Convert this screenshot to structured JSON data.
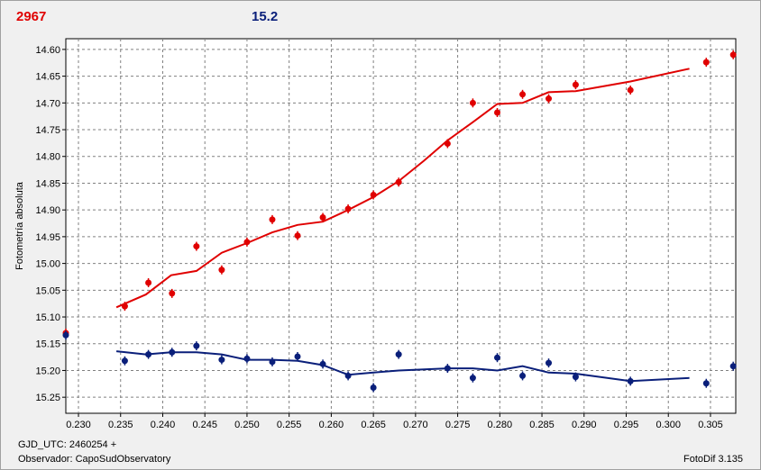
{
  "header": {
    "left_value": "2967",
    "right_value": "15.2"
  },
  "footer": {
    "gjd": "GJD_UTC: 2460254 +",
    "observer": "Observador: CapoSudObservatory",
    "software": "FotoDif 3.135"
  },
  "colors": {
    "red": "#e00000",
    "blue": "#0a1f7a",
    "grid": "#808080",
    "plot_bg": "#ffffff"
  },
  "chart_data": {
    "type": "scatter",
    "xlim": [
      0.2285,
      0.308
    ],
    "ylim": [
      15.28,
      14.58
    ],
    "y_inverted": true,
    "grid": true,
    "ylabel": "Fotometría absoluta",
    "x_ticks": [
      "0.230",
      "0.235",
      "0.240",
      "0.245",
      "0.250",
      "0.255",
      "0.260",
      "0.265",
      "0.270",
      "0.275",
      "0.280",
      "0.285",
      "0.290",
      "0.295",
      "0.300",
      "0.305"
    ],
    "y_ticks": [
      "14.60",
      "14.65",
      "14.70",
      "14.75",
      "14.80",
      "14.85",
      "14.90",
      "14.95",
      "15.00",
      "15.05",
      "15.10",
      "15.15",
      "15.20",
      "15.25"
    ],
    "series": [
      {
        "color": "#e00000",
        "points": [
          [
            0.2285,
            15.13
          ],
          [
            0.2355,
            15.08
          ],
          [
            0.2383,
            15.036
          ],
          [
            0.2411,
            15.056
          ],
          [
            0.244,
            14.968
          ],
          [
            0.247,
            15.012
          ],
          [
            0.25,
            14.96
          ],
          [
            0.253,
            14.918
          ],
          [
            0.256,
            14.948
          ],
          [
            0.259,
            14.914
          ],
          [
            0.262,
            14.898
          ],
          [
            0.265,
            14.872
          ],
          [
            0.268,
            14.848
          ],
          [
            0.2738,
            14.776
          ],
          [
            0.2768,
            14.7
          ],
          [
            0.2797,
            14.718
          ],
          [
            0.2827,
            14.684
          ],
          [
            0.2858,
            14.692
          ],
          [
            0.289,
            14.666
          ],
          [
            0.2955,
            14.676
          ],
          [
            0.3045,
            14.624
          ],
          [
            0.3077,
            14.61
          ]
        ],
        "trend": [
          [
            0.2345,
            15.082
          ],
          [
            0.238,
            15.058
          ],
          [
            0.241,
            15.022
          ],
          [
            0.244,
            15.014
          ],
          [
            0.247,
            14.98
          ],
          [
            0.25,
            14.962
          ],
          [
            0.253,
            14.942
          ],
          [
            0.256,
            14.928
          ],
          [
            0.259,
            14.922
          ],
          [
            0.262,
            14.9
          ],
          [
            0.265,
            14.876
          ],
          [
            0.268,
            14.846
          ],
          [
            0.271,
            14.808
          ],
          [
            0.2738,
            14.77
          ],
          [
            0.2768,
            14.736
          ],
          [
            0.2797,
            14.702
          ],
          [
            0.2827,
            14.7
          ],
          [
            0.2858,
            14.68
          ],
          [
            0.289,
            14.678
          ],
          [
            0.2955,
            14.66
          ],
          [
            0.3025,
            14.636
          ]
        ]
      },
      {
        "color": "#0a1f7a",
        "points": [
          [
            0.2285,
            15.134
          ],
          [
            0.2355,
            15.182
          ],
          [
            0.2383,
            15.17
          ],
          [
            0.2411,
            15.166
          ],
          [
            0.244,
            15.154
          ],
          [
            0.247,
            15.18
          ],
          [
            0.25,
            15.178
          ],
          [
            0.253,
            15.184
          ],
          [
            0.256,
            15.174
          ],
          [
            0.259,
            15.188
          ],
          [
            0.262,
            15.21
          ],
          [
            0.265,
            15.232
          ],
          [
            0.268,
            15.17
          ],
          [
            0.2738,
            15.196
          ],
          [
            0.2768,
            15.214
          ],
          [
            0.2797,
            15.176
          ],
          [
            0.2827,
            15.21
          ],
          [
            0.2858,
            15.186
          ],
          [
            0.289,
            15.212
          ],
          [
            0.2955,
            15.22
          ],
          [
            0.3045,
            15.224
          ],
          [
            0.3077,
            15.192
          ]
        ],
        "trend": [
          [
            0.2345,
            15.164
          ],
          [
            0.238,
            15.17
          ],
          [
            0.241,
            15.166
          ],
          [
            0.244,
            15.166
          ],
          [
            0.247,
            15.17
          ],
          [
            0.25,
            15.18
          ],
          [
            0.253,
            15.18
          ],
          [
            0.256,
            15.182
          ],
          [
            0.259,
            15.19
          ],
          [
            0.262,
            15.208
          ],
          [
            0.265,
            15.204
          ],
          [
            0.268,
            15.2
          ],
          [
            0.2738,
            15.196
          ],
          [
            0.2768,
            15.196
          ],
          [
            0.2797,
            15.2
          ],
          [
            0.2827,
            15.192
          ],
          [
            0.2858,
            15.204
          ],
          [
            0.289,
            15.206
          ],
          [
            0.2955,
            15.22
          ],
          [
            0.3025,
            15.214
          ]
        ]
      }
    ]
  }
}
